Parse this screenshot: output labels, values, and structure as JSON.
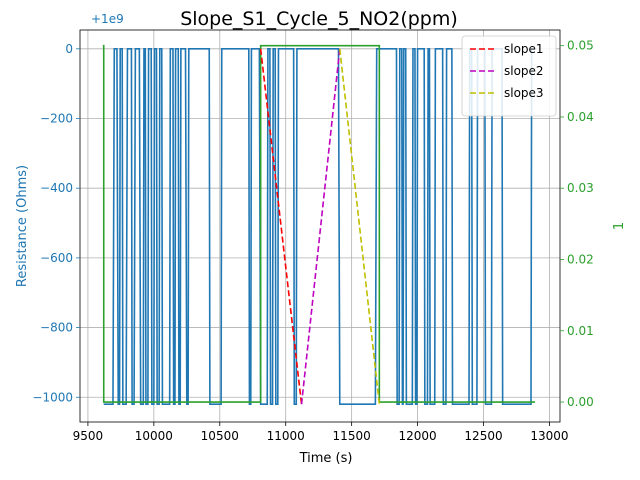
{
  "chart_data": {
    "type": "line",
    "title": "Slope_S1_Cycle_5_NO2(ppm)",
    "xlabel": "Time (s)",
    "ylabel_left": "Resistance (Ohms)",
    "ylabel_right": "1",
    "offset_label": "+1e9",
    "xlim": [
      9440,
      13080
    ],
    "ylim_left": [
      -1071,
      54
    ],
    "ylim_right": [
      -0.0028,
      0.0522
    ],
    "x_ticks": [
      9500,
      10000,
      10500,
      11000,
      11500,
      12000,
      12500,
      13000
    ],
    "x_tick_labels": [
      "9500",
      "10000",
      "10500",
      "11000",
      "11500",
      "12000",
      "12500",
      "13000"
    ],
    "y_left_ticks": [
      0,
      -200,
      -400,
      -600,
      -800,
      -1000
    ],
    "y_left_tick_labels": [
      "0",
      "−200",
      "−400",
      "−600",
      "−800",
      "−1000"
    ],
    "y_right_ticks": [
      0.0,
      0.01,
      0.02,
      0.03,
      0.04,
      0.05
    ],
    "y_right_tick_labels": [
      "0.00",
      "0.01",
      "0.02",
      "0.03",
      "0.04",
      "0.05"
    ],
    "grid": true,
    "legend_position": "top-right",
    "colors": {
      "resistance": "#1f77b4",
      "concentration": "#2ca02c",
      "slope1": "#ff0000",
      "slope2": "#bf00bf",
      "slope3": "#bfbf00",
      "left_axis": "#1f77b4",
      "right_axis": "#2ca02c"
    },
    "series": [
      {
        "kind": "resistance",
        "axis": "left",
        "x": [
          9620,
          9690,
          9700,
          9720,
          9730,
          9740,
          9745,
          9760,
          9765,
          9790,
          9800,
          9830,
          9835,
          9850,
          9860,
          9890,
          9900,
          9920,
          9925,
          9935,
          9940,
          9955,
          9960,
          9980,
          9985,
          10000,
          10005,
          10020,
          10025,
          10040,
          10045,
          10060,
          10065,
          10120,
          10125,
          10145,
          10150,
          10160,
          10165,
          10185,
          10190,
          10200,
          10205,
          10240,
          10250,
          10260,
          10265,
          10420,
          10425,
          10510,
          10515,
          10720,
          10725,
          10735,
          10740,
          10800,
          10810,
          10860,
          10865,
          10880,
          10885,
          10900,
          10905,
          10920,
          10925,
          10940,
          10945,
          11060,
          11065,
          11080,
          11085,
          11400,
          11410,
          11680,
          11690,
          11840,
          11845,
          11860,
          11865,
          11880,
          11885,
          11890,
          11895,
          11910,
          11915,
          11960,
          11965,
          11980,
          11985,
          11995,
          12000,
          12050,
          12055,
          12075,
          12080,
          12090,
          12095,
          12130,
          12135,
          12190,
          12195,
          12215,
          12220,
          12260,
          12265,
          12390,
          12395,
          12410,
          12415,
          12450,
          12455,
          12510,
          12515,
          12560,
          12565,
          12640,
          12645,
          12860,
          12865,
          12890
        ],
        "y": [
          -1020,
          -1020,
          0,
          0,
          -1020,
          -1020,
          0,
          0,
          -1020,
          -1020,
          0,
          0,
          -1020,
          -1020,
          0,
          0,
          -1020,
          -1020,
          0,
          0,
          -1020,
          -1020,
          0,
          0,
          -1020,
          -1020,
          0,
          0,
          -1020,
          -1020,
          0,
          0,
          -1020,
          -1020,
          0,
          0,
          -1020,
          -1020,
          0,
          0,
          -1020,
          -1020,
          0,
          0,
          -1020,
          -1020,
          0,
          0,
          -1020,
          -1020,
          0,
          0,
          -1020,
          -1020,
          0,
          0,
          -1020,
          -1020,
          0,
          0,
          -1020,
          -1020,
          0,
          0,
          -1020,
          -1020,
          0,
          0,
          -1020,
          -1020,
          0,
          0,
          -1020,
          -1020,
          0,
          0,
          -1020,
          -1020,
          0,
          0,
          -1020,
          -1020,
          0,
          0,
          -1020,
          -1020,
          0,
          0,
          -1020,
          -1020,
          0,
          0,
          -1020,
          -1020,
          0,
          0,
          -1020,
          -1020,
          0,
          0,
          -1020,
          -1020,
          0,
          0,
          -1020,
          -1020,
          0,
          0,
          -1020,
          -1020,
          0,
          0,
          -1020,
          -1020,
          0,
          0,
          -1020,
          -1020,
          0,
          0
        ]
      },
      {
        "kind": "concentration",
        "axis": "right",
        "x": [
          9613,
          9620,
          9620,
          10810,
          10810,
          11710,
          11710,
          12890
        ],
        "y": [
          0.05,
          0.05,
          0,
          0,
          0.05,
          0.05,
          0,
          0
        ]
      },
      {
        "kind": "slope",
        "name": "slope1",
        "axis": "left",
        "dash": true,
        "x": [
          10810,
          11120
        ],
        "y": [
          0,
          -1020
        ]
      },
      {
        "kind": "slope",
        "name": "slope2",
        "axis": "left",
        "dash": true,
        "x": [
          11120,
          11410
        ],
        "y": [
          -1020,
          0
        ]
      },
      {
        "kind": "slope",
        "name": "slope3",
        "axis": "left",
        "dash": true,
        "x": [
          11410,
          11710
        ],
        "y": [
          0,
          -1020
        ]
      }
    ]
  }
}
